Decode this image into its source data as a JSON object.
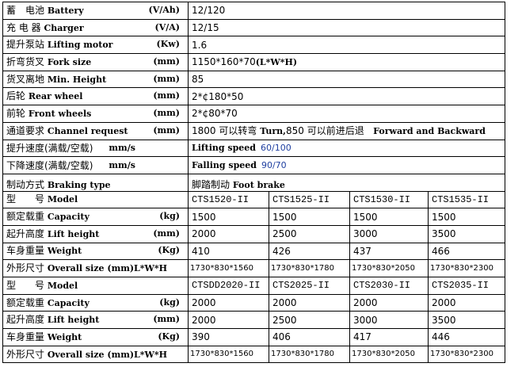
{
  "general_specs": [
    {
      "zh": "蓄　电池",
      "en": "Battery",
      "unit": "(V/Ah)",
      "value": "12/120"
    },
    {
      "zh": "充 电 器",
      "en": "Charger",
      "unit": "(V/A)",
      "value": "12/15"
    },
    {
      "zh": "提升泵站",
      "en": "Lifting motor",
      "unit": "(Kw)",
      "value": "1.6"
    },
    {
      "zh": "折弯货叉",
      "en": "Fork size",
      "unit": "(mm)",
      "value": "1150*160*70",
      "value_en": "(L*W*H)"
    },
    {
      "zh": "货叉离地",
      "en": "Min. Height",
      "unit": "(mm)",
      "value": "85"
    },
    {
      "zh": "后轮",
      "en": "Rear wheel",
      "unit": "(mm)",
      "value": "2*¢180*50"
    },
    {
      "zh": "前轮",
      "en": "Front wheels",
      "unit": "(mm)",
      "value": "2*¢80*70"
    }
  ],
  "channel": {
    "zh": "通道要求",
    "en": "Channel request",
    "unit": "(mm)",
    "v1": "1800 可以转弯",
    "v2": "Turn,",
    "v3": "850 可以前进后退",
    "v4": "Forward and Backward"
  },
  "lifting": {
    "zh": "提升速度(满载/空载)",
    "unit": "mm/s",
    "label": "Lifting speed",
    "value": "60/100"
  },
  "falling": {
    "zh": "下降速度(满载/空载)",
    "unit": "mm/s",
    "label": "Falling speed",
    "value": "90/70"
  },
  "braking": {
    "zh": "制动方式",
    "en": "Braking type",
    "value_zh": "脚踏制动",
    "value_en": "Foot brake"
  },
  "labels": {
    "model_zh": "型　　号",
    "model_en": "Model",
    "capacity_zh": "额定载重",
    "capacity_en": "Capacity",
    "capacity_unit": "(kg)",
    "lift_zh": "起升高度",
    "lift_en": "Lift height",
    "lift_unit": "(mm)",
    "weight_zh": "车身重量",
    "weight_en": "Weight",
    "weight_unit": "(Kg)",
    "size_zh": "外形尺寸",
    "size_en": "Overall size (mm)L*W*H"
  },
  "groups": [
    {
      "models": [
        "CTS1520-II",
        "CTS1525-II",
        "CTS1530-II",
        "CTS1535-II"
      ],
      "capacity": [
        "1500",
        "1500",
        "1500",
        "1500"
      ],
      "lift": [
        "2000",
        "2500",
        "3000",
        "3500"
      ],
      "weight": [
        "410",
        "426",
        "437",
        "466"
      ],
      "size": [
        "1730*830*1560",
        "1730*830*1780",
        "1730*830*2050",
        "1730*830*2300"
      ]
    },
    {
      "models": [
        "CTSDD2020-II",
        "CTS2025-II",
        "CTS2030-II",
        "CTS2035-II"
      ],
      "capacity": [
        "2000",
        "2000",
        "2000",
        "2000"
      ],
      "lift": [
        "2000",
        "2500",
        "3000",
        "3500"
      ],
      "weight": [
        "390",
        "406",
        "417",
        "446"
      ],
      "size": [
        "1730*830*1560",
        "1730*830*1780",
        "1730*830*2050",
        "1730*830*2300"
      ]
    }
  ]
}
